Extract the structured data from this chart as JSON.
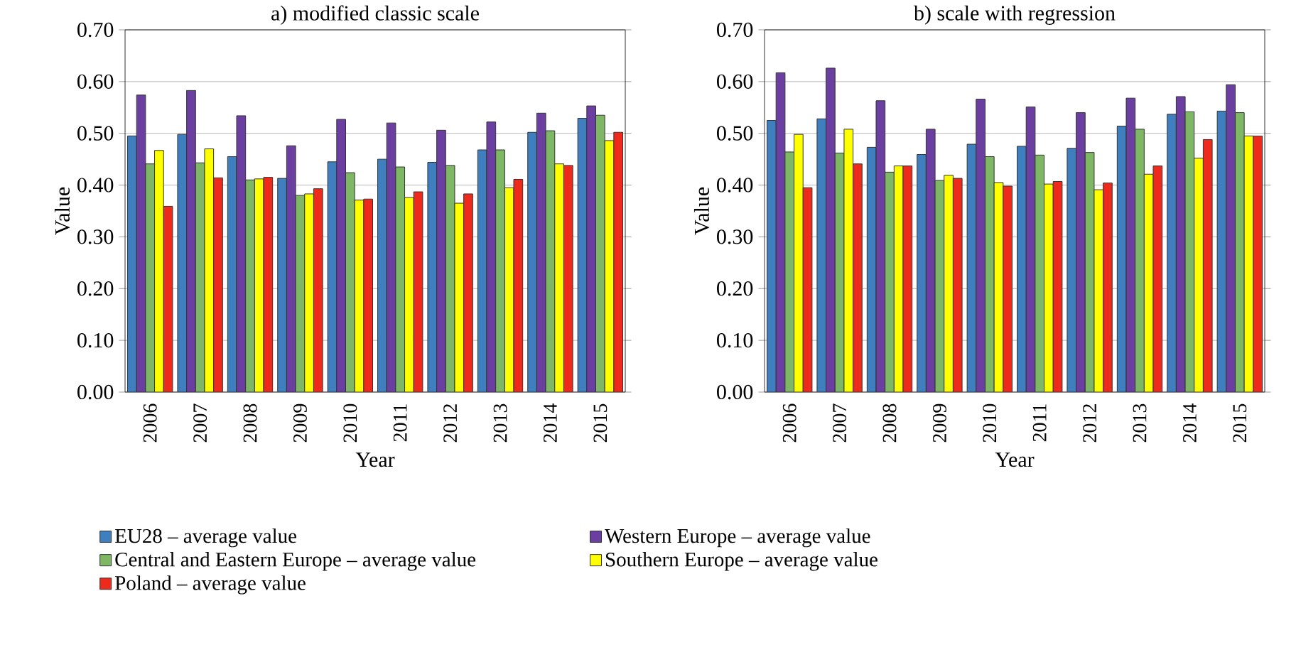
{
  "chart_data": [
    {
      "type": "bar",
      "title": "a) modified classic scale",
      "xlabel": "Year",
      "ylabel": "Value",
      "categories": [
        "2006",
        "2007",
        "2008",
        "2009",
        "2010",
        "2011",
        "2012",
        "2013",
        "2014",
        "2015"
      ],
      "ylim": [
        0,
        0.7
      ],
      "yticks": [
        {
          "value": 0,
          "label": "0.00"
        },
        {
          "value": 0.1,
          "label": "0.10"
        },
        {
          "value": 0.2,
          "label": "0.20"
        },
        {
          "value": 0.3,
          "label": "0.30"
        },
        {
          "value": 0.4,
          "label": "0.40"
        },
        {
          "value": 0.5,
          "label": "0.50"
        },
        {
          "value": 0.6,
          "label": "0.60"
        },
        {
          "value": 0.7,
          "label": "0.70"
        }
      ],
      "grid": "y",
      "legend": "bottom",
      "series": [
        {
          "name": "EU28 – average value",
          "color": "#3f7fc0",
          "values": [
            0.495,
            0.498,
            0.455,
            0.413,
            0.445,
            0.45,
            0.444,
            0.468,
            0.502,
            0.529
          ]
        },
        {
          "name": "Western Europe – average value",
          "color": "#6a3fa0",
          "values": [
            0.574,
            0.583,
            0.534,
            0.476,
            0.527,
            0.52,
            0.506,
            0.522,
            0.539,
            0.553
          ]
        },
        {
          "name": "Central and Eastern Europe – average value",
          "color": "#7fb865",
          "values": [
            0.441,
            0.443,
            0.41,
            0.38,
            0.424,
            0.435,
            0.438,
            0.468,
            0.505,
            0.535
          ]
        },
        {
          "name": "Southern Europe – average value",
          "color": "#ffff00",
          "values": [
            0.467,
            0.47,
            0.412,
            0.383,
            0.371,
            0.376,
            0.365,
            0.395,
            0.441,
            0.486
          ]
        },
        {
          "name": "Poland – average value",
          "color": "#ee2a1d",
          "values": [
            0.359,
            0.414,
            0.415,
            0.393,
            0.373,
            0.387,
            0.383,
            0.411,
            0.438,
            0.502
          ]
        }
      ]
    },
    {
      "type": "bar",
      "title": "b) scale with regression",
      "xlabel": "Year",
      "ylabel": "Value",
      "categories": [
        "2006",
        "2007",
        "2008",
        "2009",
        "2010",
        "2011",
        "2012",
        "2013",
        "2014",
        "2015"
      ],
      "ylim": [
        0,
        0.7
      ],
      "yticks": [
        {
          "value": 0,
          "label": "0.00"
        },
        {
          "value": 0.1,
          "label": "0.10"
        },
        {
          "value": 0.2,
          "label": "0.20"
        },
        {
          "value": 0.3,
          "label": "0.30"
        },
        {
          "value": 0.4,
          "label": "0.40"
        },
        {
          "value": 0.5,
          "label": "0.50"
        },
        {
          "value": 0.6,
          "label": "0.60"
        },
        {
          "value": 0.7,
          "label": "0.70"
        }
      ],
      "grid": "y",
      "series": [
        {
          "color": "#3f7fc0",
          "values": [
            0.525,
            0.528,
            0.473,
            0.459,
            0.479,
            0.475,
            0.471,
            0.514,
            0.537,
            0.543
          ]
        },
        {
          "color": "#6a3fa0",
          "values": [
            0.617,
            0.626,
            0.563,
            0.508,
            0.566,
            0.551,
            0.54,
            0.568,
            0.571,
            0.594
          ]
        },
        {
          "color": "#7fb865",
          "values": [
            0.464,
            0.462,
            0.425,
            0.409,
            0.455,
            0.458,
            0.463,
            0.508,
            0.542,
            0.54
          ]
        },
        {
          "color": "#ffff00",
          "values": [
            0.498,
            0.508,
            0.437,
            0.419,
            0.405,
            0.402,
            0.391,
            0.421,
            0.452,
            0.495
          ]
        },
        {
          "color": "#ee2a1d",
          "values": [
            0.395,
            0.441,
            0.437,
            0.413,
            0.398,
            0.407,
            0.404,
            0.437,
            0.488,
            0.495
          ]
        }
      ]
    }
  ]
}
